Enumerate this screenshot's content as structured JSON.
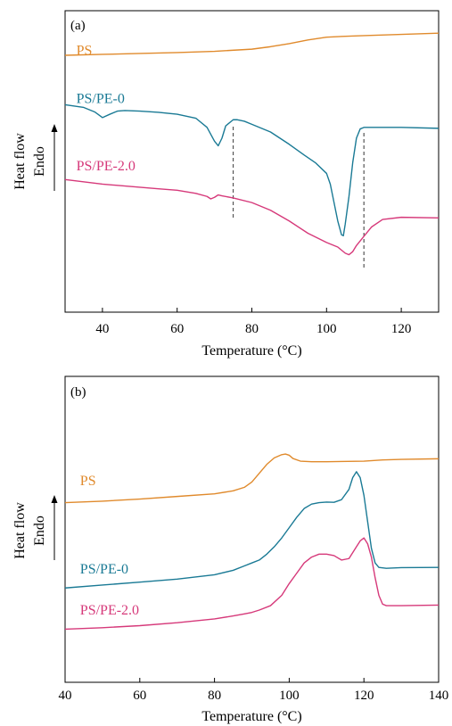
{
  "ylabel_line1": "Heat flow",
  "ylabel_line2": "Endo",
  "colors": {
    "PS": "#e08a2c",
    "PS/PE-0": "#1a7a95",
    "PS/PE-2.0": "#d6397a",
    "axis": "#000000",
    "guide": "#555555"
  },
  "chart_data": [
    {
      "type": "line",
      "panel_label": "(a)",
      "xlabel": "Temperature (°C)",
      "xlim": [
        30,
        130
      ],
      "xticks": [
        40,
        60,
        80,
        100,
        120
      ],
      "yticks": "none",
      "grid": false,
      "vlines": [
        75,
        110
      ],
      "series": [
        {
          "name": "PS",
          "label_at": [
            33,
            -0.12
          ],
          "x": [
            30,
            40,
            50,
            60,
            70,
            80,
            85,
            90,
            95,
            100,
            105,
            110,
            120,
            130
          ],
          "y": [
            0,
            -0.3,
            -0.6,
            -0.9,
            -1.3,
            -2.0,
            -2.8,
            -3.8,
            -5.0,
            -5.9,
            -6.2,
            -6.4,
            -6.8,
            -7.2
          ]
        },
        {
          "name": "PS/PE-0",
          "label_at": [
            33,
            15.5
          ],
          "x": [
            30,
            35,
            38,
            40,
            42,
            44,
            46,
            50,
            55,
            60,
            65,
            68,
            70,
            71,
            72,
            73,
            75,
            76,
            78,
            80,
            85,
            90,
            94,
            97,
            100,
            101,
            102,
            103,
            104,
            104.5,
            105,
            106,
            107,
            108,
            109,
            110,
            112,
            120,
            130
          ],
          "y": [
            16.1,
            17.0,
            18.5,
            20.3,
            19.2,
            18.2,
            18.0,
            18.2,
            18.6,
            19.2,
            20.5,
            23.5,
            28.0,
            29.5,
            27.0,
            23.0,
            21.0,
            21.0,
            21.5,
            22.5,
            25.0,
            29.0,
            32.5,
            35.0,
            38.5,
            42.0,
            48.0,
            54.0,
            58.5,
            58.8,
            55.0,
            46.0,
            35.0,
            27.0,
            24.0,
            23.5,
            23.5,
            23.5,
            23.8
          ]
        },
        {
          "name": "PS/PE-2.0",
          "label_at": [
            33,
            37.5
          ],
          "x": [
            30,
            40,
            50,
            55,
            60,
            65,
            68,
            69,
            70,
            71,
            72,
            75,
            80,
            85,
            90,
            95,
            100,
            103,
            105,
            106,
            107,
            108,
            110,
            112,
            115,
            120,
            130
          ],
          "y": [
            40.5,
            42.0,
            43.0,
            43.5,
            44.0,
            45.0,
            46.0,
            46.8,
            46.3,
            45.5,
            45.8,
            46.5,
            48.0,
            50.5,
            54.0,
            58.0,
            61.0,
            62.5,
            64.5,
            65.0,
            64.0,
            62.0,
            59.0,
            56.0,
            53.5,
            52.8,
            53.0
          ]
        }
      ]
    },
    {
      "type": "line",
      "panel_label": "(b)",
      "xlabel": "Temperature (°C)",
      "xlim": [
        40,
        140
      ],
      "xticks": [
        40,
        60,
        80,
        100,
        120,
        140
      ],
      "yticks": "none",
      "grid": false,
      "series": [
        {
          "name": "PS",
          "label_at": [
            44,
            17.5
          ],
          "x": [
            40,
            50,
            60,
            70,
            80,
            85,
            88,
            90,
            92,
            94,
            96,
            98,
            99,
            100,
            101,
            103,
            106,
            110,
            120,
            125,
            130,
            140
          ],
          "y": [
            23.5,
            23.0,
            22.3,
            21.4,
            20.5,
            19.5,
            18.3,
            16.5,
            13.5,
            10.5,
            8.3,
            7.2,
            7.0,
            7.4,
            8.5,
            9.4,
            9.6,
            9.6,
            9.4,
            9.0,
            8.8,
            8.6
          ]
        },
        {
          "name": "PS/PE-0",
          "label_at": [
            44,
            47.5
          ],
          "x": [
            40,
            50,
            60,
            70,
            80,
            85,
            88,
            90,
            92,
            94,
            96,
            98,
            100,
            102,
            104,
            106,
            108,
            110,
            112,
            114,
            116,
            117,
            118,
            119,
            120,
            121,
            122,
            123,
            124,
            126,
            130,
            140
          ],
          "y": [
            52.5,
            51.5,
            50.5,
            49.5,
            48.0,
            46.5,
            45.0,
            44.0,
            43.0,
            41.0,
            38.5,
            35.5,
            32.0,
            28.5,
            25.5,
            24.0,
            23.5,
            23.3,
            23.4,
            22.5,
            19.0,
            15.0,
            13.0,
            15.0,
            21.0,
            30.0,
            39.0,
            44.0,
            45.5,
            45.8,
            45.6,
            45.5
          ]
        },
        {
          "name": "PS/PE-2.0",
          "label_at": [
            44,
            61.5
          ],
          "x": [
            40,
            50,
            60,
            70,
            80,
            85,
            88,
            90,
            92,
            95,
            98,
            100,
            102,
            104,
            106,
            108,
            110,
            112,
            114,
            116,
            118,
            119,
            120,
            121,
            122,
            123,
            124,
            125,
            126,
            130,
            140
          ],
          "y": [
            66.5,
            66.0,
            65.3,
            64.3,
            63.0,
            62.0,
            61.3,
            60.8,
            60.0,
            58.5,
            55.0,
            51.0,
            47.5,
            44.0,
            42.0,
            41.0,
            41.0,
            41.5,
            43.0,
            42.5,
            38.5,
            36.5,
            35.5,
            37.5,
            42.0,
            49.0,
            55.0,
            58.0,
            58.5,
            58.5,
            58.3
          ]
        }
      ]
    }
  ]
}
